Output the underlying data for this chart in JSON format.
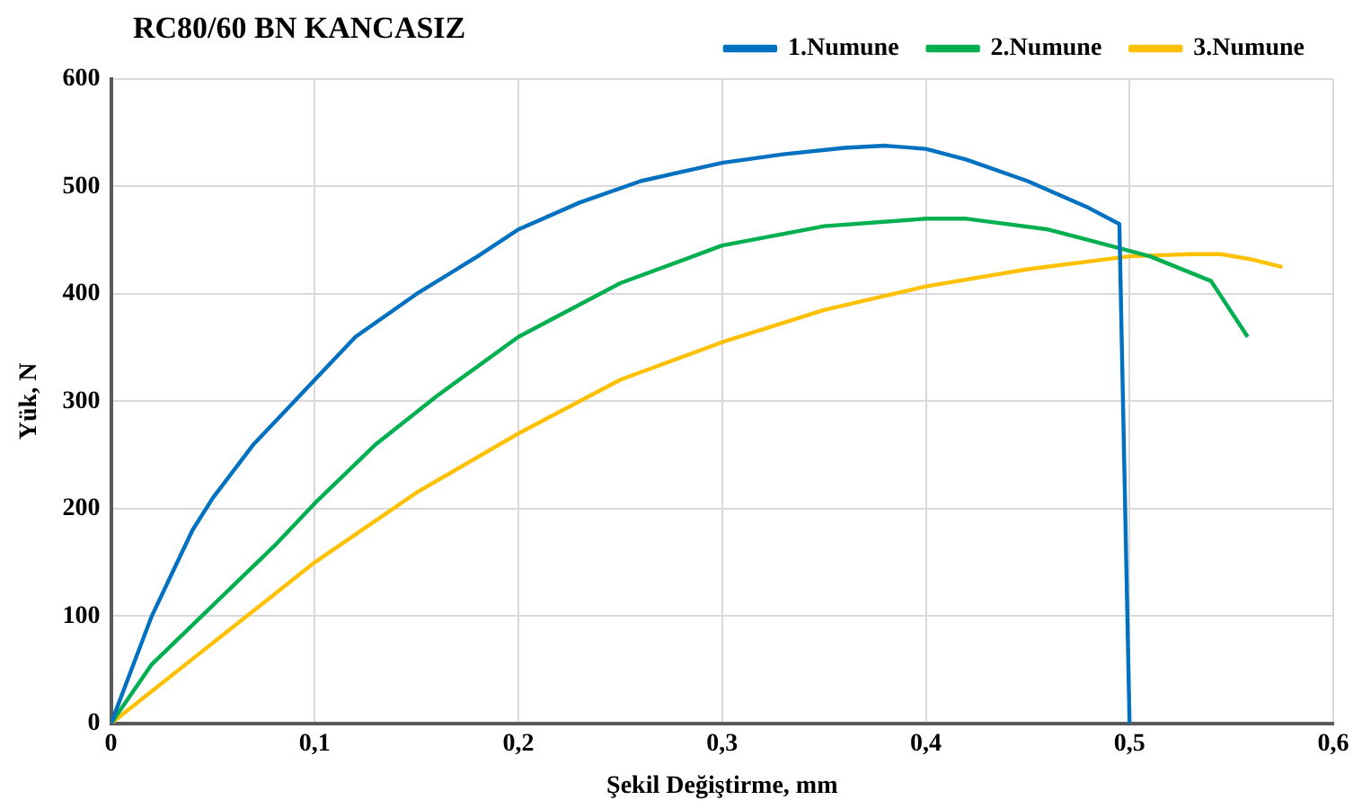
{
  "chart_data": {
    "type": "line",
    "title": "RC80/60 BN KANCASIZ",
    "xlabel": "Şekil Değiştirme, mm",
    "ylabel": "Yük, N",
    "xlim": [
      0,
      0.6
    ],
    "xticks": [
      {
        "value": 0,
        "label": "0"
      },
      {
        "value": 0.1,
        "label": "0,1"
      },
      {
        "value": 0.2,
        "label": "0,2"
      },
      {
        "value": 0.3,
        "label": "0,3"
      },
      {
        "value": 0.4,
        "label": "0,4"
      },
      {
        "value": 0.5,
        "label": "0,5"
      },
      {
        "value": 0.6,
        "label": "0,6"
      }
    ],
    "ylim": [
      0,
      600
    ],
    "yticks": [
      0,
      100,
      200,
      300,
      400,
      500,
      600
    ],
    "grid": true,
    "legend": "top right",
    "marker": "none",
    "line_style": "solid",
    "series": [
      {
        "name": "1.Numune",
        "color": "#0070c0",
        "x": [
          0,
          0.01,
          0.02,
          0.03,
          0.04,
          0.05,
          0.07,
          0.09,
          0.1,
          0.12,
          0.15,
          0.18,
          0.2,
          0.23,
          0.26,
          0.3,
          0.33,
          0.36,
          0.38,
          0.4,
          0.42,
          0.45,
          0.48,
          0.495,
          0.5
        ],
        "values": [
          0,
          50,
          100,
          140,
          180,
          210,
          260,
          300,
          320,
          360,
          400,
          435,
          460,
          485,
          505,
          522,
          530,
          536,
          538,
          535,
          525,
          505,
          480,
          465,
          0
        ]
      },
      {
        "name": "2.Numune",
        "color": "#00b050",
        "x": [
          0,
          0.02,
          0.05,
          0.08,
          0.1,
          0.13,
          0.16,
          0.2,
          0.25,
          0.3,
          0.35,
          0.4,
          0.42,
          0.46,
          0.48,
          0.51,
          0.54,
          0.558
        ],
        "values": [
          0,
          55,
          110,
          165,
          205,
          260,
          305,
          360,
          410,
          445,
          463,
          470,
          470,
          460,
          450,
          435,
          412,
          360
        ]
      },
      {
        "name": "3.Numune",
        "color": "#ffc000",
        "x": [
          0,
          0.04,
          0.08,
          0.1,
          0.15,
          0.2,
          0.25,
          0.3,
          0.35,
          0.4,
          0.45,
          0.5,
          0.53,
          0.545,
          0.56,
          0.575
        ],
        "values": [
          0,
          60,
          120,
          150,
          215,
          270,
          320,
          355,
          385,
          407,
          423,
          435,
          437,
          437,
          432,
          425
        ]
      }
    ]
  }
}
